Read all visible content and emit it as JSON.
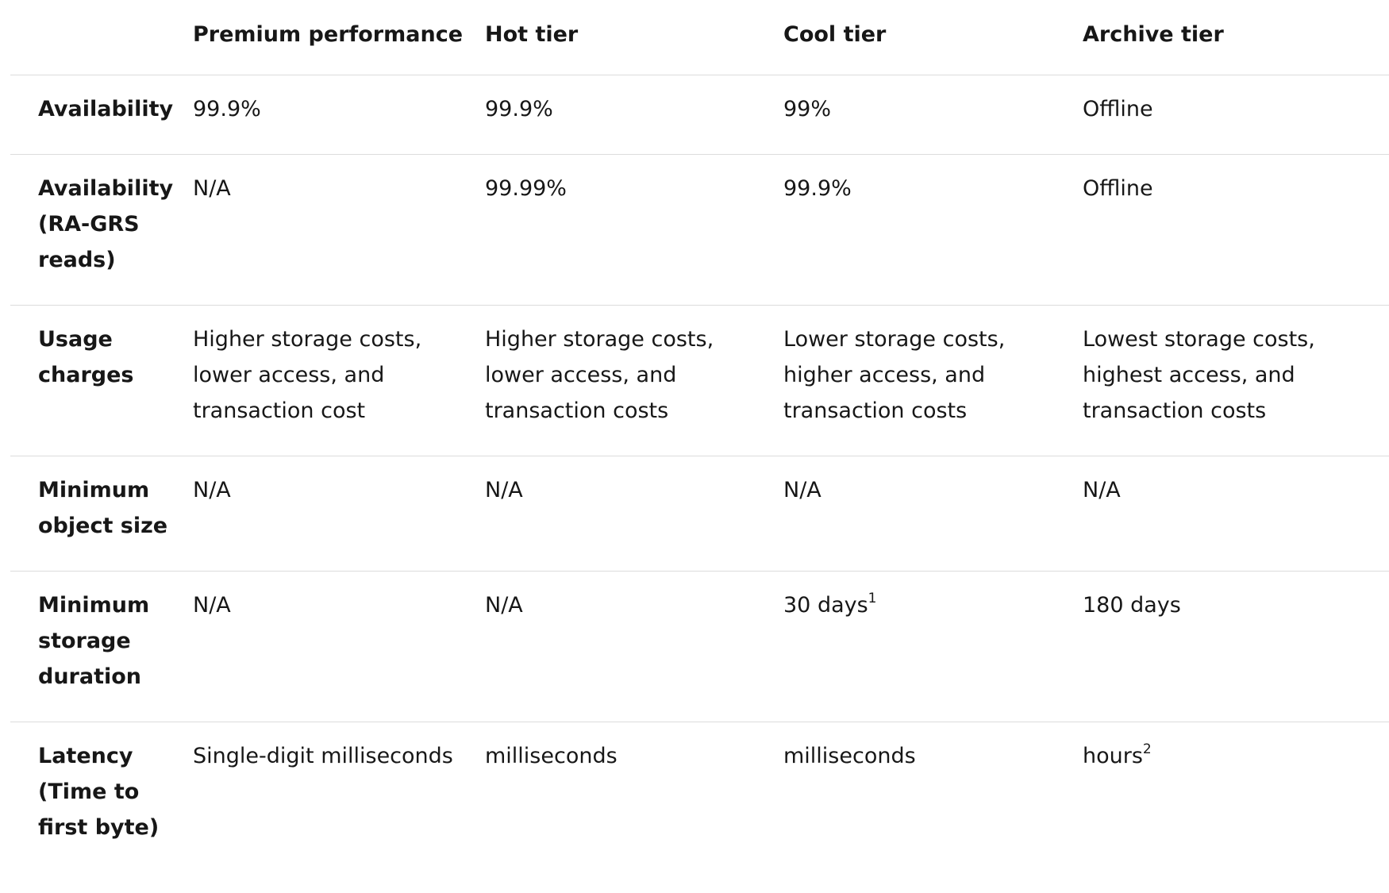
{
  "columns": [
    "",
    "Premium performance",
    "Hot tier",
    "Cool tier",
    "Archive tier"
  ],
  "rows": [
    {
      "label": "Availability",
      "cells": [
        {
          "text": "99.9%",
          "sup": ""
        },
        {
          "text": "99.9%",
          "sup": ""
        },
        {
          "text": "99%",
          "sup": ""
        },
        {
          "text": "Offline",
          "sup": ""
        }
      ]
    },
    {
      "label": "Availability (RA-GRS reads)",
      "cells": [
        {
          "text": "N/A",
          "sup": ""
        },
        {
          "text": "99.99%",
          "sup": ""
        },
        {
          "text": "99.9%",
          "sup": ""
        },
        {
          "text": "Offline",
          "sup": ""
        }
      ]
    },
    {
      "label": "Usage charges",
      "cells": [
        {
          "text": "Higher storage costs, lower access, and transaction cost",
          "sup": ""
        },
        {
          "text": "Higher storage costs, lower access, and transaction costs",
          "sup": ""
        },
        {
          "text": "Lower storage costs, higher access, and transaction costs",
          "sup": ""
        },
        {
          "text": "Lowest storage costs, highest access, and transaction costs",
          "sup": ""
        }
      ]
    },
    {
      "label": "Minimum object size",
      "cells": [
        {
          "text": "N/A",
          "sup": ""
        },
        {
          "text": "N/A",
          "sup": ""
        },
        {
          "text": "N/A",
          "sup": ""
        },
        {
          "text": "N/A",
          "sup": ""
        }
      ]
    },
    {
      "label": "Minimum storage duration",
      "cells": [
        {
          "text": "N/A",
          "sup": ""
        },
        {
          "text": "N/A",
          "sup": ""
        },
        {
          "text": "30 days",
          "sup": "1"
        },
        {
          "text": "180 days",
          "sup": ""
        }
      ]
    },
    {
      "label": "Latency (Time to first byte)",
      "cells": [
        {
          "text": "Single-digit milliseconds",
          "sup": ""
        },
        {
          "text": "milliseconds",
          "sup": ""
        },
        {
          "text": "milliseconds",
          "sup": ""
        },
        {
          "text": "hours",
          "sup": "2"
        }
      ]
    }
  ]
}
